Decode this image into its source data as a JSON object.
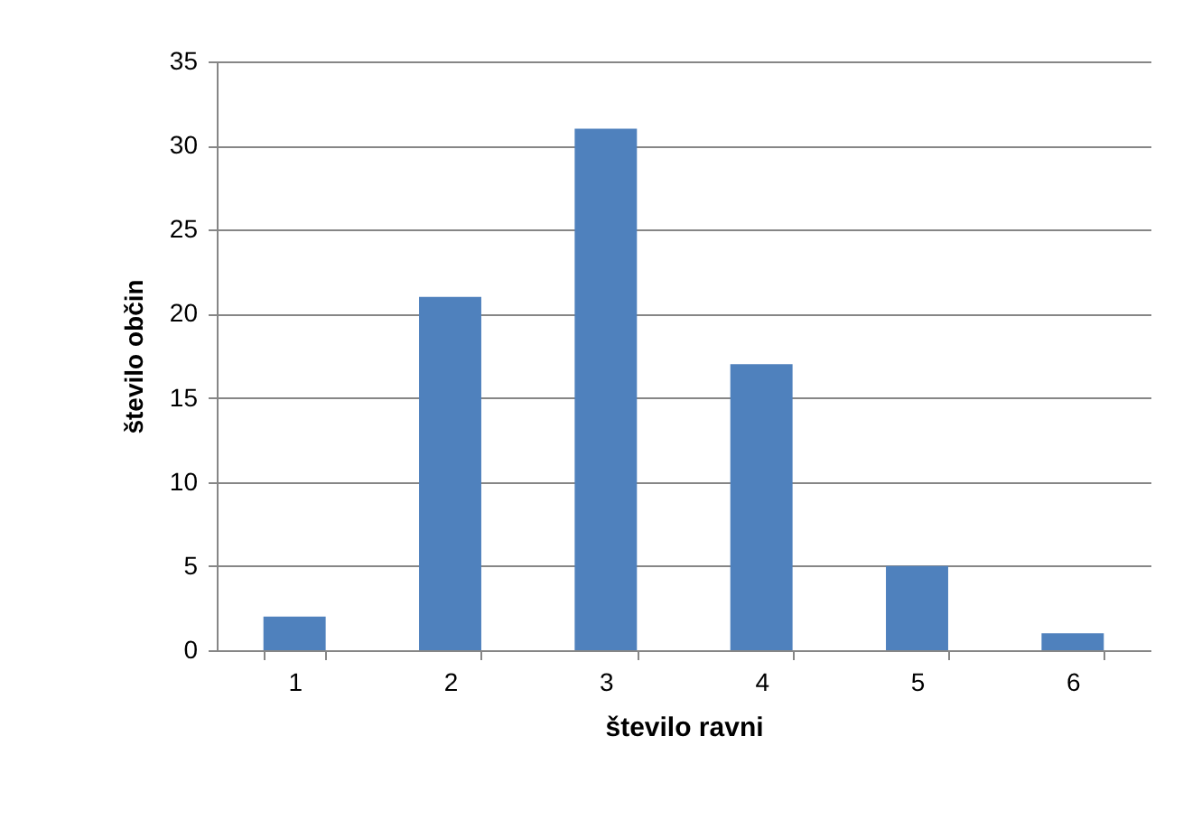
{
  "chart_data": {
    "type": "bar",
    "xlabel": "število ravni",
    "ylabel": "število občin",
    "categories": [
      "1",
      "2",
      "3",
      "4",
      "5",
      "6"
    ],
    "values": [
      2,
      21,
      31,
      17,
      5,
      1
    ],
    "color": "#4f81bd",
    "ylim": [
      0,
      35
    ],
    "yticks": [
      0,
      5,
      10,
      15,
      20,
      25,
      30,
      35
    ],
    "grid": "y"
  }
}
